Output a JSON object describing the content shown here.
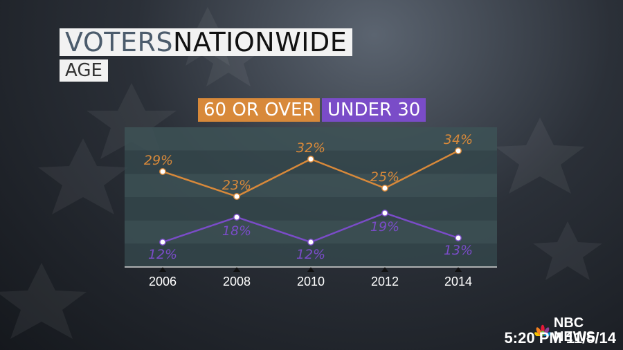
{
  "title": {
    "part1": "VOTERS",
    "part2": " NATIONWIDE"
  },
  "subtitle": "AGE",
  "colors": {
    "older": "#d8893a",
    "younger": "#7a4cc8"
  },
  "chart_data": {
    "type": "line",
    "x": [
      "2006",
      "2008",
      "2010",
      "2012",
      "2014"
    ],
    "series": [
      {
        "name": "60 OR OVER",
        "values": [
          29,
          23,
          32,
          25,
          34
        ],
        "labels": [
          "29%",
          "23%",
          "32%",
          "25%",
          "34%"
        ]
      },
      {
        "name": "UNDER 30",
        "values": [
          12,
          18,
          12,
          19,
          13
        ],
        "labels": [
          "12%",
          "18%",
          "12%",
          "19%",
          "13%"
        ]
      }
    ],
    "grid": true,
    "legend": "top-center"
  },
  "logo": {
    "text": "NBC NEWS",
    "icon": "peacock-icon"
  },
  "timestamp": "5:20 PM 11/5/14"
}
